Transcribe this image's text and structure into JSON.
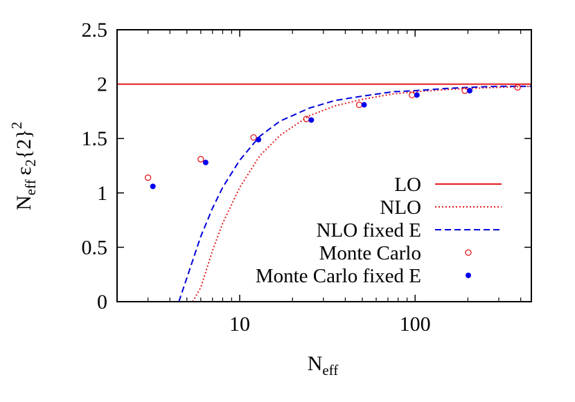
{
  "chart_data": {
    "type": "line",
    "title": "",
    "xlabel": {
      "main": "N",
      "sub": "eff"
    },
    "ylabel": {
      "n": "N",
      "n_sub": "eff",
      "eps": "ε",
      "eps_sub": "2",
      "braces": "{2}",
      "exp": "2"
    },
    "x_scale": "log",
    "xlim": [
      2,
      460
    ],
    "ylim": [
      0,
      2.5
    ],
    "x_ticks": [
      {
        "value": 10,
        "label": "10"
      },
      {
        "value": 100,
        "label": "100"
      }
    ],
    "y_ticks": [
      {
        "value": 0,
        "label": "0"
      },
      {
        "value": 0.5,
        "label": "0.5"
      },
      {
        "value": 1,
        "label": "1"
      },
      {
        "value": 1.5,
        "label": "1.5"
      },
      {
        "value": 2,
        "label": "2"
      },
      {
        "value": 2.5,
        "label": "2.5"
      }
    ],
    "grid": false,
    "legend_position": "bottom-right",
    "series": [
      {
        "name": "LO",
        "kind": "line",
        "style": "solid",
        "color": "#e41a1c",
        "x": [
          2,
          460
        ],
        "y": [
          2,
          2
        ]
      },
      {
        "name": "NLO",
        "kind": "line",
        "style": "dotted",
        "color": "#e41a1c",
        "x": [
          5.4,
          6,
          7,
          8,
          10,
          13,
          17,
          25,
          35,
          50,
          75,
          100,
          150,
          200,
          300,
          460
        ],
        "y": [
          0,
          0.13,
          0.47,
          0.72,
          1.05,
          1.34,
          1.53,
          1.71,
          1.8,
          1.86,
          1.91,
          1.93,
          1.95,
          1.96,
          1.97,
          1.98
        ]
      },
      {
        "name": "NLO fixed E",
        "kind": "line",
        "style": "dashed",
        "color": "#0000dd",
        "x": [
          4.5,
          5,
          6,
          7,
          8,
          10,
          13,
          17,
          25,
          35,
          50,
          75,
          100,
          150,
          200,
          300,
          460
        ],
        "y": [
          0,
          0.22,
          0.6,
          0.86,
          1.05,
          1.3,
          1.52,
          1.66,
          1.78,
          1.85,
          1.89,
          1.93,
          1.94,
          1.96,
          1.97,
          1.98,
          1.98
        ]
      },
      {
        "name": "Monte Carlo",
        "kind": "points",
        "marker": "open-circle",
        "color": "#e41a1c",
        "x": [
          3,
          6,
          12,
          24,
          48,
          96,
          192,
          384
        ],
        "y": [
          1.14,
          1.31,
          1.51,
          1.68,
          1.81,
          1.9,
          1.94,
          1.97
        ]
      },
      {
        "name": "Monte Carlo fixed E",
        "kind": "points",
        "marker": "filled-circle",
        "color": "#0000ee",
        "x": [
          3.2,
          6.4,
          12.8,
          25.6,
          51.2,
          102.4,
          204.8
        ],
        "y": [
          1.06,
          1.28,
          1.49,
          1.67,
          1.81,
          1.9,
          1.94
        ]
      }
    ]
  }
}
